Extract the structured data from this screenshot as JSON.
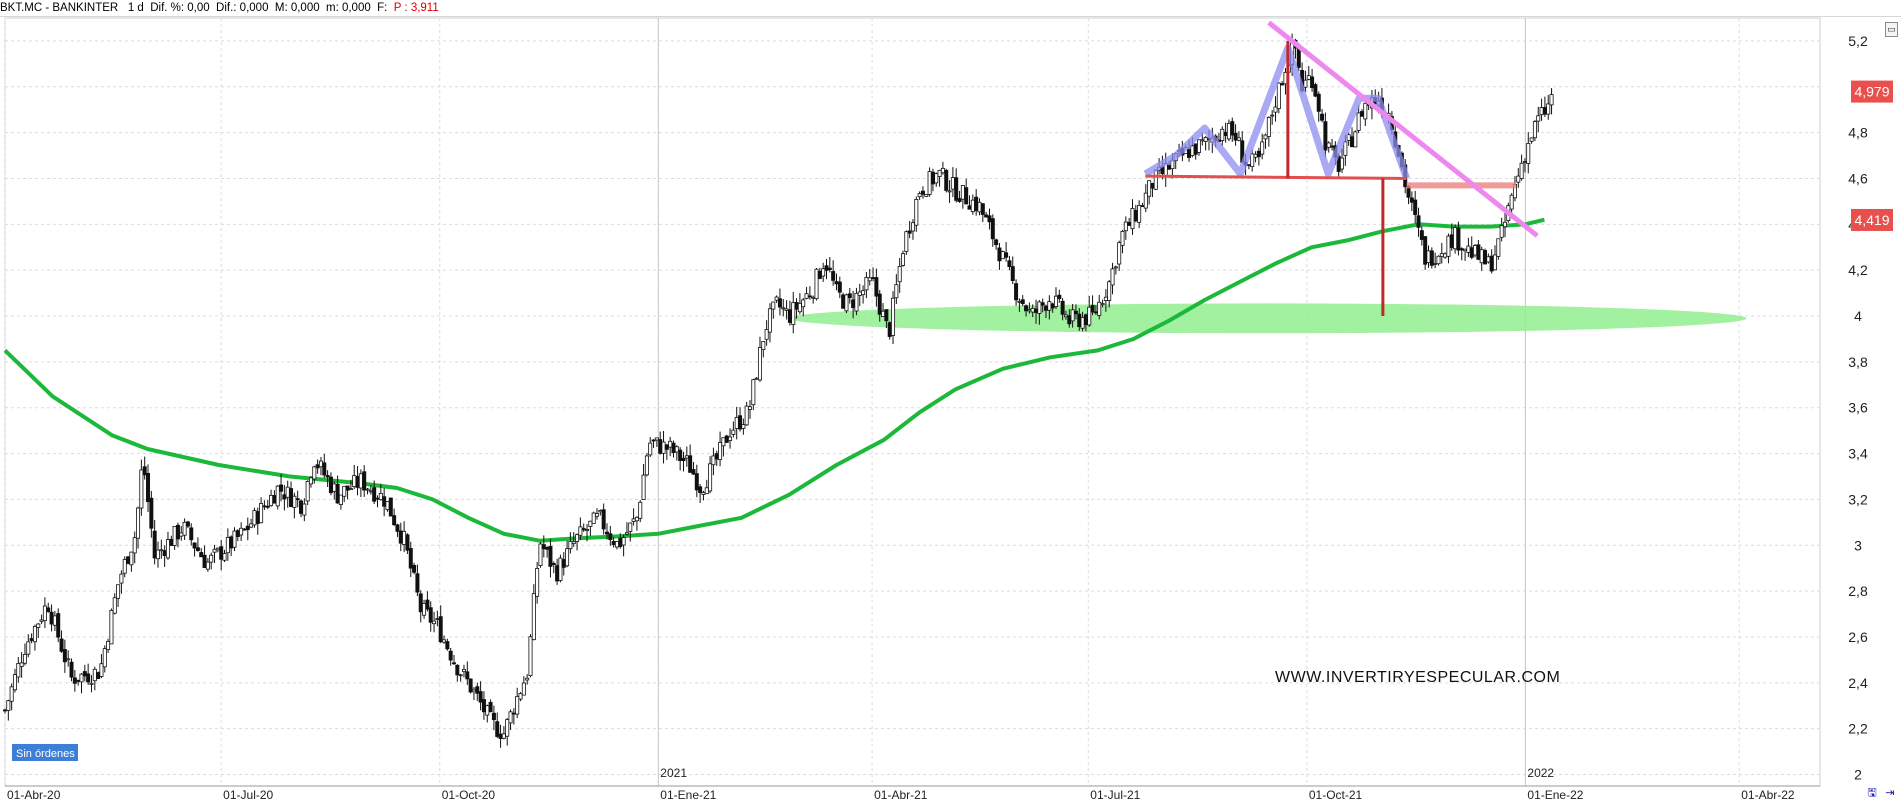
{
  "header": {
    "symbol": "BKT.MC - BANKINTER",
    "period": "1 d",
    "dif_pct": "Dif. %: 0,00",
    "dif": "Dif.: 0,000",
    "m1": "M: 0,000",
    "m2": "m: 0,000",
    "f": "F:",
    "p": "P : 3,911"
  },
  "badge": "Sin órdenes",
  "watermark": "WWW.INVERTIRYESPECULAR.COM",
  "price_tags": {
    "last": "4,979",
    "ma": "4,419"
  },
  "colors": {
    "price_tag": "#e8504e",
    "ma": "#1cb83a",
    "support_zone": "#90ee90",
    "triangle": "#ee88ee",
    "neckline": "#f08080",
    "shoulders": "#8c8cf0",
    "badge": "#3d7fd6"
  },
  "icons": [
    "window-restore-icon",
    "save-icon",
    "export-icon"
  ],
  "chart_data": {
    "type": "candlestick",
    "title": "BKT.MC - BANKINTER",
    "ylim": [
      1.95,
      5.3
    ],
    "y_ticks": [
      "2",
      "2,2",
      "2,4",
      "2,6",
      "2,8",
      "3",
      "3,2",
      "3,4",
      "3,6",
      "3,8",
      "4",
      "4,2",
      "4,4",
      "4,6",
      "4,8",
      "5",
      "5,2"
    ],
    "x_ticks": [
      {
        "label": "01-Abr-20",
        "day": 0
      },
      {
        "label": "01-Jul-20",
        "day": 91
      },
      {
        "label": "01-Oct-20",
        "day": 183
      },
      {
        "label": "01-Ene-21",
        "day": 275
      },
      {
        "label": "01-Abr-21",
        "day": 365
      },
      {
        "label": "01-Jul-21",
        "day": 456
      },
      {
        "label": "01-Oct-21",
        "day": 548
      },
      {
        "label": "01-Ene-22",
        "day": 640
      },
      {
        "label": "01-Abr-22",
        "day": 730
      }
    ],
    "year_labels": [
      {
        "label": "2021",
        "day": 275
      },
      {
        "label": "2022",
        "day": 640
      }
    ],
    "xlim_days": [
      0,
      764
    ],
    "price_path": [
      [
        0,
        2.28
      ],
      [
        8,
        2.55
      ],
      [
        18,
        2.75
      ],
      [
        28,
        2.42
      ],
      [
        40,
        2.45
      ],
      [
        48,
        2.85
      ],
      [
        55,
        3.05
      ],
      [
        58,
        3.38
      ],
      [
        63,
        2.95
      ],
      [
        75,
        3.08
      ],
      [
        85,
        2.92
      ],
      [
        100,
        3.05
      ],
      [
        115,
        3.25
      ],
      [
        125,
        3.18
      ],
      [
        130,
        3.38
      ],
      [
        140,
        3.22
      ],
      [
        150,
        3.28
      ],
      [
        160,
        3.2
      ],
      [
        168,
        3.02
      ],
      [
        175,
        2.72
      ],
      [
        182,
        2.65
      ],
      [
        190,
        2.48
      ],
      [
        198,
        2.35
      ],
      [
        205,
        2.22
      ],
      [
        210,
        2.18
      ],
      [
        215,
        2.32
      ],
      [
        220,
        2.45
      ],
      [
        225,
        3.02
      ],
      [
        232,
        2.88
      ],
      [
        240,
        3.02
      ],
      [
        250,
        3.12
      ],
      [
        258,
        3.0
      ],
      [
        266,
        3.12
      ],
      [
        271,
        3.45
      ],
      [
        280,
        3.42
      ],
      [
        288,
        3.35
      ],
      [
        293,
        3.25
      ],
      [
        300,
        3.38
      ],
      [
        305,
        3.5
      ],
      [
        313,
        3.58
      ],
      [
        320,
        3.95
      ],
      [
        325,
        4.05
      ],
      [
        330,
        4.0
      ],
      [
        340,
        4.12
      ],
      [
        345,
        4.25
      ],
      [
        350,
        4.1
      ],
      [
        355,
        4.05
      ],
      [
        365,
        4.15
      ],
      [
        372,
        3.92
      ],
      [
        378,
        4.3
      ],
      [
        385,
        4.55
      ],
      [
        393,
        4.62
      ],
      [
        400,
        4.55
      ],
      [
        410,
        4.48
      ],
      [
        418,
        4.3
      ],
      [
        425,
        4.12
      ],
      [
        432,
        4.0
      ],
      [
        440,
        4.08
      ],
      [
        448,
        3.98
      ],
      [
        458,
        4.0
      ],
      [
        465,
        4.15
      ],
      [
        470,
        4.35
      ],
      [
        478,
        4.48
      ],
      [
        483,
        4.58
      ],
      [
        490,
        4.65
      ],
      [
        498,
        4.72
      ],
      [
        505,
        4.75
      ],
      [
        513,
        4.82
      ],
      [
        518,
        4.78
      ],
      [
        523,
        4.65
      ],
      [
        528,
        4.68
      ],
      [
        535,
        4.95
      ],
      [
        540,
        5.12
      ],
      [
        543,
        5.18
      ],
      [
        546,
        5.0
      ],
      [
        550,
        5.05
      ],
      [
        553,
        4.92
      ],
      [
        556,
        4.75
      ],
      [
        561,
        4.65
      ],
      [
        567,
        4.78
      ],
      [
        572,
        4.92
      ],
      [
        578,
        4.95
      ],
      [
        583,
        4.88
      ],
      [
        587,
        4.7
      ],
      [
        590,
        4.55
      ],
      [
        594,
        4.4
      ],
      [
        598,
        4.25
      ],
      [
        603,
        4.28
      ],
      [
        610,
        4.35
      ],
      [
        617,
        4.28
      ],
      [
        625,
        4.22
      ],
      [
        630,
        4.35
      ],
      [
        635,
        4.55
      ],
      [
        640,
        4.72
      ],
      [
        645,
        4.85
      ],
      [
        650,
        4.92
      ],
      [
        652,
        4.98
      ]
    ],
    "ma_path": [
      [
        0,
        3.85
      ],
      [
        20,
        3.65
      ],
      [
        45,
        3.48
      ],
      [
        60,
        3.42
      ],
      [
        90,
        3.35
      ],
      [
        120,
        3.3
      ],
      [
        150,
        3.27
      ],
      [
        165,
        3.25
      ],
      [
        180,
        3.2
      ],
      [
        195,
        3.12
      ],
      [
        210,
        3.05
      ],
      [
        225,
        3.02
      ],
      [
        240,
        3.03
      ],
      [
        260,
        3.04
      ],
      [
        275,
        3.05
      ],
      [
        290,
        3.08
      ],
      [
        310,
        3.12
      ],
      [
        330,
        3.22
      ],
      [
        350,
        3.35
      ],
      [
        370,
        3.46
      ],
      [
        385,
        3.58
      ],
      [
        400,
        3.68
      ],
      [
        420,
        3.77
      ],
      [
        440,
        3.82
      ],
      [
        460,
        3.85
      ],
      [
        475,
        3.9
      ],
      [
        490,
        3.98
      ],
      [
        505,
        4.07
      ],
      [
        520,
        4.15
      ],
      [
        535,
        4.23
      ],
      [
        550,
        4.3
      ],
      [
        565,
        4.33
      ],
      [
        580,
        4.37
      ],
      [
        595,
        4.4
      ],
      [
        610,
        4.39
      ],
      [
        625,
        4.39
      ],
      [
        640,
        4.4
      ],
      [
        648,
        4.42
      ]
    ],
    "annotations": {
      "support_zone": {
        "day_from": 330,
        "day_to": 733,
        "y_center": 3.99,
        "half_height": 0.065
      },
      "descending_trendline": {
        "from": [
          532,
          5.28
        ],
        "to": [
          645,
          4.35
        ]
      },
      "neckline": {
        "from": [
          480,
          4.61
        ],
        "to": [
          590,
          4.6
        ]
      },
      "pink_break_line": {
        "from": [
          590,
          4.57
        ],
        "to": [
          636,
          4.57
        ]
      },
      "head_and_shoulders": [
        [
          480,
          4.62
        ],
        [
          493,
          4.7
        ],
        [
          505,
          4.82
        ],
        [
          520,
          4.62
        ],
        [
          540,
          5.17
        ],
        [
          557,
          4.62
        ],
        [
          570,
          4.95
        ],
        [
          578,
          4.95
        ],
        [
          590,
          4.6
        ]
      ],
      "target_drop_lines": [
        {
          "day": 540,
          "from": 5.2,
          "to": 4.6
        },
        {
          "day": 580,
          "from": 4.6,
          "to": 4.0
        }
      ],
      "last_price": 4.979,
      "ma_value": 4.419
    }
  }
}
